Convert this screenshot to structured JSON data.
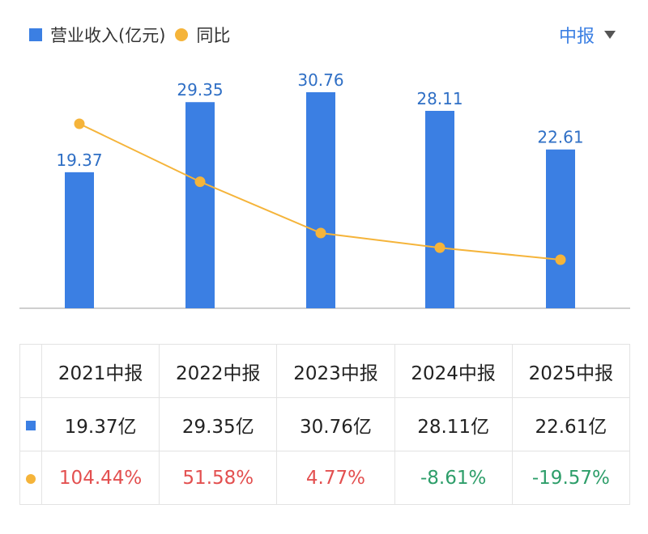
{
  "legend": {
    "revenue_label": "营业收入(亿元)",
    "yoy_label": "同比"
  },
  "period_selector": {
    "label": "中报"
  },
  "colors": {
    "bar": "#3b7fe3",
    "line": "#f5b43a",
    "positive": "#e35050",
    "negative": "#2e9e6a",
    "value_label": "#2f6fc5"
  },
  "chart_data": {
    "type": "bar",
    "categories": [
      "2021中报",
      "2022中报",
      "2023中报",
      "2024中报",
      "2025中报"
    ],
    "series": [
      {
        "name": "营业收入(亿元)",
        "type": "bar",
        "values": [
          19.37,
          29.35,
          30.76,
          28.11,
          22.61
        ]
      },
      {
        "name": "同比",
        "type": "line",
        "values": [
          104.44,
          51.58,
          4.77,
          -8.61,
          -19.57
        ]
      }
    ],
    "data_labels": [
      "19.37",
      "29.35",
      "30.76",
      "28.11",
      "22.61"
    ],
    "grid": false,
    "legend_position": "top-left"
  },
  "table": {
    "headers": [
      "2021中报",
      "2022中报",
      "2023中报",
      "2024中报",
      "2025中报"
    ],
    "revenue_row": [
      "19.37亿",
      "29.35亿",
      "30.76亿",
      "28.11亿",
      "22.61亿"
    ],
    "yoy_row": [
      "104.44%",
      "51.58%",
      "4.77%",
      "-8.61%",
      "-19.57%"
    ]
  }
}
